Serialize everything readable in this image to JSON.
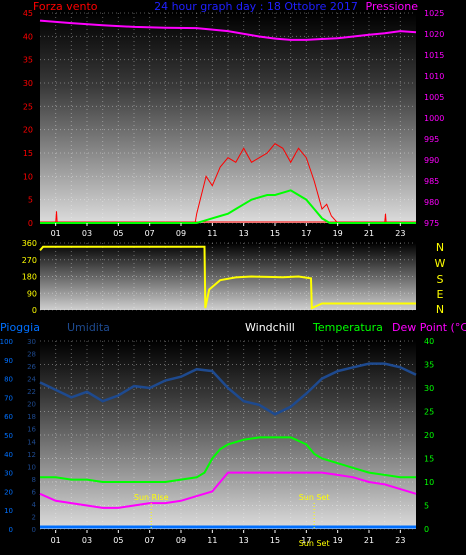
{
  "header": {
    "left_label": "Forza vento",
    "center_label": "24 hour graph day : 18 Ottobre 2017",
    "right_label": "Pressione"
  },
  "compass": [
    "N",
    "W",
    "S",
    "E",
    "N"
  ],
  "bottom_header": {
    "pioggia": "Pioggia",
    "umidita": "Umidita",
    "windchill": "Windchill",
    "temperatura": "Temperatura",
    "dewpoint": "Dew Point (°C)"
  },
  "annotations": {
    "sunrise": "Sun Rise",
    "sunset": "Sun Set",
    "sunset_bottom": "Sun Set"
  },
  "colors": {
    "wind_gust": "#ff0000",
    "wind_avg": "#00ff00",
    "pressure": "#ff00ff",
    "direction": "#ffff00",
    "humidity": "#1e4a8f",
    "temperature": "#00ff00",
    "dewpoint": "#ff00ff",
    "rain": "#0070ff",
    "windchill": "#ffffff"
  },
  "chart_data": [
    {
      "type": "line",
      "name": "wind-pressure",
      "x_ticks": [
        "01",
        "03",
        "05",
        "07",
        "09",
        "11",
        "13",
        "15",
        "17",
        "19",
        "21",
        "23"
      ],
      "x_range": [
        0,
        24
      ],
      "ylim_left": [
        0,
        45
      ],
      "y_ticks_left": [
        "0",
        "5",
        "10",
        "15",
        "20",
        "25",
        "30",
        "35",
        "40",
        "45"
      ],
      "ylim_right": [
        975,
        1025
      ],
      "y_ticks_right": [
        "975",
        "980",
        "985",
        "990",
        "995",
        "1000",
        "1005",
        "1010",
        "1015",
        "1020",
        "1025"
      ],
      "pressure": {
        "x": [
          0,
          2,
          4,
          6,
          8,
          10,
          12,
          14,
          15,
          16,
          17,
          18,
          19,
          20,
          21,
          22,
          23,
          24
        ],
        "y": [
          1023.2,
          1022.6,
          1022.1,
          1021.7,
          1021.5,
          1021.4,
          1020.7,
          1019.4,
          1018.9,
          1018.6,
          1018.6,
          1018.8,
          1019.0,
          1019.4,
          1019.8,
          1020.2,
          1020.7,
          1020.4
        ]
      },
      "wind_gust": {
        "x": [
          0,
          1.0,
          1.05,
          1.1,
          9.9,
          10.0,
          10.3,
          10.6,
          11.0,
          11.5,
          12.0,
          12.5,
          13.0,
          13.5,
          14.0,
          14.5,
          15.0,
          15.5,
          16.0,
          16.5,
          17.0,
          17.5,
          18.0,
          18.3,
          18.6,
          19.0,
          22.0,
          22.05,
          22.1,
          24
        ],
        "y": [
          0,
          0,
          2.5,
          0,
          0,
          2,
          6,
          10,
          8,
          12,
          14,
          13,
          16,
          13,
          14,
          15,
          17,
          16,
          13,
          16,
          14,
          9,
          3,
          4,
          1.5,
          0,
          0,
          2,
          0,
          0
        ]
      },
      "wind_avg": {
        "x": [
          0,
          10.0,
          10.5,
          11.0,
          11.5,
          12.0,
          12.5,
          13.0,
          13.5,
          14.0,
          14.5,
          15.0,
          15.5,
          16.0,
          16.5,
          17.0,
          17.5,
          18.0,
          18.5,
          24
        ],
        "y": [
          0,
          0,
          0.5,
          1,
          1.5,
          2,
          3,
          4,
          5,
          5.5,
          6,
          6,
          6.5,
          7,
          6,
          5,
          3,
          1,
          0,
          0
        ]
      }
    },
    {
      "type": "line",
      "name": "wind-direction",
      "ylim": [
        0,
        360
      ],
      "y_ticks": [
        "0",
        "90",
        "180",
        "270",
        "360"
      ],
      "x": [
        0,
        0.2,
        10.5,
        10.55,
        10.8,
        11.5,
        12.5,
        13.5,
        14.5,
        15.5,
        16.5,
        17.3,
        17.35,
        18.0,
        24
      ],
      "y": [
        320,
        340,
        340,
        10,
        110,
        160,
        175,
        180,
        178,
        176,
        180,
        170,
        10,
        35,
        35
      ]
    },
    {
      "type": "line",
      "name": "temperature-humidity",
      "x_ticks": [
        "01",
        "03",
        "05",
        "07",
        "09",
        "11",
        "13",
        "15",
        "17",
        "19",
        "21",
        "23"
      ],
      "ylim_pioggia": [
        0,
        100
      ],
      "y_ticks_pioggia": [
        "0",
        "10",
        "20",
        "30",
        "40",
        "50",
        "60",
        "70",
        "80",
        "90",
        "100"
      ],
      "ylim_umidita": [
        0,
        30
      ],
      "y_ticks_umidita": [
        "0",
        "2",
        "4",
        "6",
        "8",
        "10",
        "12",
        "14",
        "16",
        "18",
        "20",
        "22",
        "24",
        "26",
        "28",
        "30"
      ],
      "ylim_temp": [
        0,
        40
      ],
      "y_ticks_temp": [
        "0",
        "5",
        "10",
        "15",
        "20",
        "25",
        "30",
        "35",
        "40"
      ],
      "humidity": {
        "x": [
          0,
          1,
          2,
          3,
          4,
          5,
          6,
          7,
          8,
          9,
          10,
          11,
          12,
          13,
          14,
          15,
          16,
          17,
          18,
          19,
          20,
          21,
          22,
          23,
          24
        ],
        "y": [
          78,
          74,
          70,
          73,
          68,
          71,
          76,
          75,
          79,
          81,
          85,
          84,
          75,
          68,
          66,
          61,
          65,
          72,
          80,
          84,
          86,
          88,
          88,
          86,
          82
        ]
      },
      "temperature": {
        "x": [
          0,
          1,
          2,
          3,
          4,
          5,
          6,
          7,
          8,
          9,
          10,
          10.5,
          11,
          11.5,
          12,
          13,
          14,
          15,
          16,
          17,
          17.5,
          18,
          19,
          20,
          21,
          22,
          23,
          24
        ],
        "y": [
          11,
          11,
          10.5,
          10.5,
          10,
          10,
          10,
          10,
          10,
          10.5,
          11,
          12,
          15,
          17,
          18,
          19,
          19.5,
          19.5,
          19.5,
          18,
          16,
          15,
          14,
          13,
          12,
          11.5,
          11,
          11
        ]
      },
      "dewpoint": {
        "x": [
          0,
          1,
          2,
          3,
          4,
          5,
          6,
          7,
          8,
          9,
          10,
          11,
          12,
          13,
          14,
          15,
          16,
          17,
          18,
          19,
          20,
          21,
          22,
          23,
          24
        ],
        "y": [
          7.5,
          6,
          5.5,
          5,
          4.5,
          4.5,
          5,
          5.5,
          5.5,
          6,
          7,
          8,
          12,
          12,
          12,
          12,
          12,
          12,
          12,
          11.5,
          11,
          10,
          9.5,
          8.5,
          7.5
        ]
      },
      "rain": {
        "x": [
          0,
          24
        ],
        "y": [
          0,
          0
        ]
      },
      "sunrise_x": 7.1,
      "sunset_x": 17.5
    }
  ]
}
